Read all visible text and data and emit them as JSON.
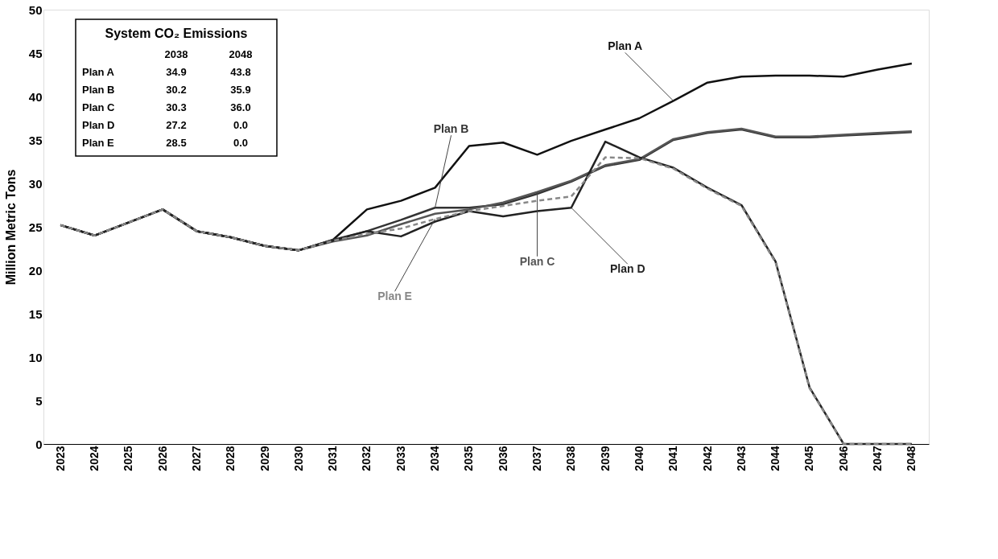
{
  "chart_data": {
    "type": "line",
    "ylabel": "Million Metric Tons",
    "categories": [
      "2023",
      "2024",
      "2025",
      "2026",
      "2027",
      "2028",
      "2029",
      "2030",
      "2031",
      "2032",
      "2033",
      "2034",
      "2035",
      "2036",
      "2037",
      "2038",
      "2039",
      "2040",
      "2041",
      "2042",
      "2043",
      "2044",
      "2045",
      "2046",
      "2047",
      "2048"
    ],
    "ylim": [
      0,
      50
    ],
    "yticks": [
      0,
      5,
      10,
      15,
      20,
      25,
      30,
      35,
      40,
      45,
      50
    ],
    "grid": false,
    "legend": false,
    "marker": "none",
    "series": [
      {
        "name": "Plan A",
        "color": "#111111",
        "values": [
          25.2,
          24.0,
          25.5,
          27.0,
          24.5,
          23.8,
          22.8,
          22.3,
          23.5,
          27.0,
          28.0,
          29.5,
          34.3,
          34.7,
          33.3,
          34.9,
          36.2,
          37.5,
          39.5,
          41.6,
          42.3,
          42.4,
          42.4,
          42.3,
          43.1,
          43.8
        ]
      },
      {
        "name": "Plan B",
        "color": "#333333",
        "values": [
          25.2,
          24.0,
          25.5,
          27.0,
          24.5,
          23.8,
          22.8,
          22.3,
          23.5,
          24.5,
          25.8,
          27.2,
          27.2,
          27.6,
          28.8,
          30.2,
          32.0,
          32.7,
          35.0,
          35.8,
          36.2,
          35.3,
          35.3,
          35.5,
          35.7,
          35.9
        ]
      },
      {
        "name": "Plan C",
        "color": "#555555",
        "values": [
          25.2,
          24.0,
          25.5,
          27.0,
          24.5,
          23.8,
          22.8,
          22.3,
          23.3,
          24.0,
          25.3,
          26.5,
          27.0,
          27.8,
          29.0,
          30.3,
          32.1,
          32.8,
          35.1,
          35.9,
          36.3,
          35.4,
          35.4,
          35.6,
          35.8,
          36.0
        ]
      },
      {
        "name": "Plan D",
        "color": "#222222",
        "values": [
          25.2,
          24.0,
          25.5,
          27.0,
          24.5,
          23.8,
          22.8,
          22.3,
          23.4,
          24.5,
          23.9,
          25.6,
          26.8,
          26.2,
          26.8,
          27.2,
          34.8,
          33.0,
          31.8,
          29.5,
          27.5,
          21.0,
          6.5,
          0.0,
          0.0,
          0.0
        ]
      },
      {
        "name": "Plan E",
        "color": "#888888",
        "line_style": "dashed",
        "values": [
          25.2,
          24.0,
          25.5,
          27.0,
          24.5,
          23.8,
          22.8,
          22.3,
          23.4,
          24.2,
          24.8,
          25.9,
          26.8,
          27.4,
          28.0,
          28.5,
          33.0,
          32.9,
          31.7,
          29.4,
          27.4,
          20.9,
          6.4,
          0.0,
          0.0,
          0.0
        ]
      }
    ],
    "annotations": [
      "System CO₂ Emissions",
      "2038",
      "2048",
      "Plan A",
      "34.9",
      "43.8",
      "Plan B",
      "30.2",
      "35.9",
      "Plan C",
      "30.3",
      "36.0",
      "Plan D",
      "27.2",
      "0.0",
      "Plan E",
      "28.5",
      "0.0"
    ]
  }
}
